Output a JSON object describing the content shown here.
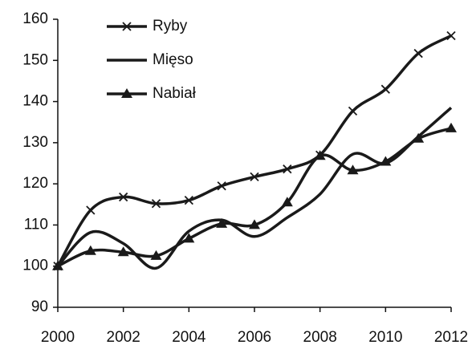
{
  "chart_data": {
    "type": "line",
    "x": [
      2000,
      2001,
      2002,
      2003,
      2004,
      2005,
      2006,
      2007,
      2008,
      2009,
      2010,
      2011,
      2012
    ],
    "series": [
      {
        "name": "Ryby",
        "color": "#1a1a1a",
        "marker": "x",
        "values": [
          100,
          113.6,
          116.8,
          115.2,
          116,
          119.5,
          121.7,
          123.6,
          127,
          137.7,
          143,
          151.7,
          156
        ]
      },
      {
        "name": "Mięso",
        "color": "#1a1a1a",
        "marker": "none",
        "values": [
          100,
          108.2,
          105.5,
          99.5,
          108.5,
          111.2,
          107.2,
          111.8,
          117.5,
          127.2,
          125,
          131.5,
          138.5
        ]
      },
      {
        "name": "Nabiał",
        "color": "#1a1a1a",
        "marker": "triangle",
        "values": [
          100,
          103.7,
          103.4,
          102.5,
          106.7,
          110.3,
          110,
          115.5,
          126.8,
          123.3,
          125.4,
          131,
          133.5
        ]
      }
    ],
    "xlim": [
      2000,
      2012
    ],
    "xticks": [
      2000,
      2002,
      2004,
      2006,
      2008,
      2010,
      2012
    ],
    "ylim": [
      90,
      160
    ],
    "yticks": [
      90,
      100,
      110,
      120,
      130,
      140,
      150,
      160
    ],
    "grid": false,
    "legend": "upper left",
    "smooth": true
  }
}
